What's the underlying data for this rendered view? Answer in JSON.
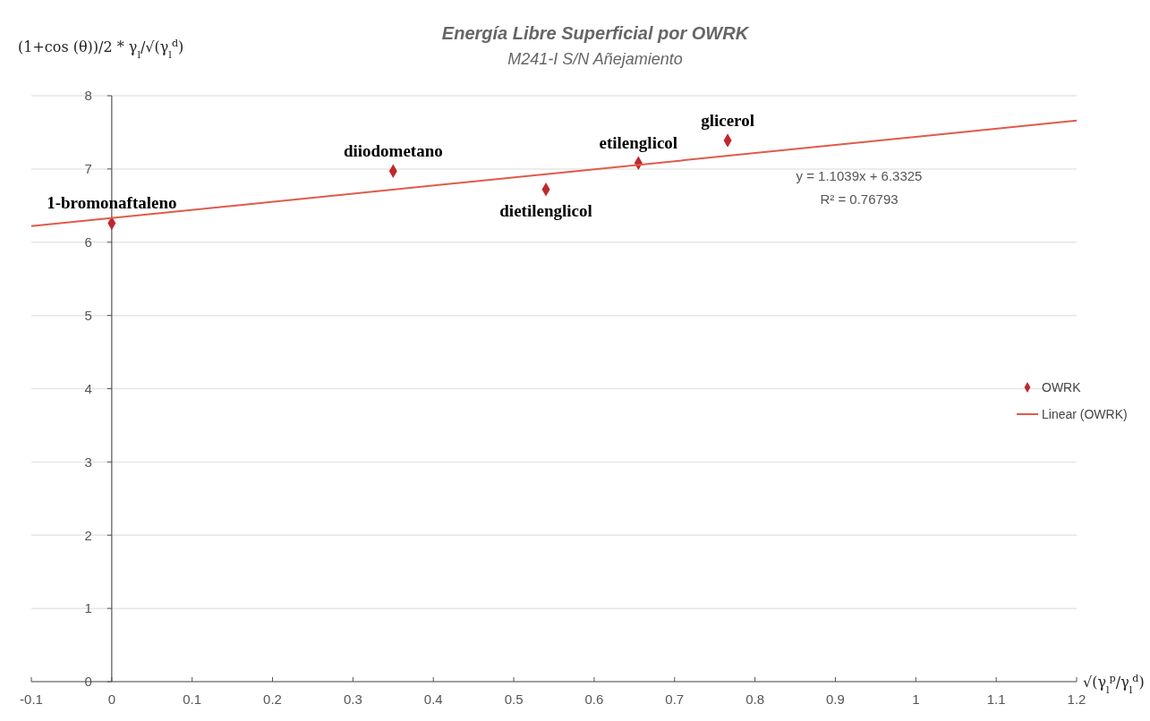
{
  "chart_data": {
    "type": "scatter",
    "title": "Energía Libre Superficial por OWRK",
    "subtitle": "M241-I  S/N Añejamiento",
    "xlabel": "√(γ$_{l}$$^{p}$/γ$_{l}$$^{d}$)",
    "ylabel": "(1+cos (θ))/2 * γ$_{l}$/√(γ$_{l}$$^{d}$)",
    "series": [
      {
        "name": "OWRK",
        "color": "#c0282d",
        "marker": "diamond",
        "x": [
          0,
          0.35,
          0.54,
          0.655,
          0.766
        ],
        "values": [
          6.26,
          6.97,
          6.72,
          7.08,
          7.39
        ]
      },
      {
        "name": "Linear  (OWRK)",
        "type": "line",
        "color": "#e05a4a",
        "x": [
          -0.1,
          1.2
        ],
        "values": [
          6.22,
          7.66
        ]
      }
    ],
    "xlim": [
      -0.1,
      1.2
    ],
    "xticks": [
      -0.1,
      0,
      0.1,
      0.2,
      0.3,
      0.4,
      0.5,
      0.6,
      0.7,
      0.8,
      0.9,
      1,
      1.1,
      1.2
    ],
    "ylim": [
      0,
      8
    ],
    "yticks": [
      0,
      1,
      2,
      3,
      4,
      5,
      6,
      7,
      8
    ],
    "grid": "y",
    "legend": "right",
    "annotations": [
      {
        "text": "1-bromonaftaleno",
        "x": 0,
        "y": 6.26
      },
      {
        "text": "diiodometano",
        "x": 0.35,
        "y": 6.97
      },
      {
        "text": "dietilenglicol",
        "x": 0.54,
        "y": 6.72
      },
      {
        "text": "etilenglicol",
        "x": 0.655,
        "y": 7.08
      },
      {
        "text": "glicerol",
        "x": 0.766,
        "y": 7.39
      },
      "y = 1.1039x + 6.3325",
      "R² = 0.76793"
    ]
  }
}
